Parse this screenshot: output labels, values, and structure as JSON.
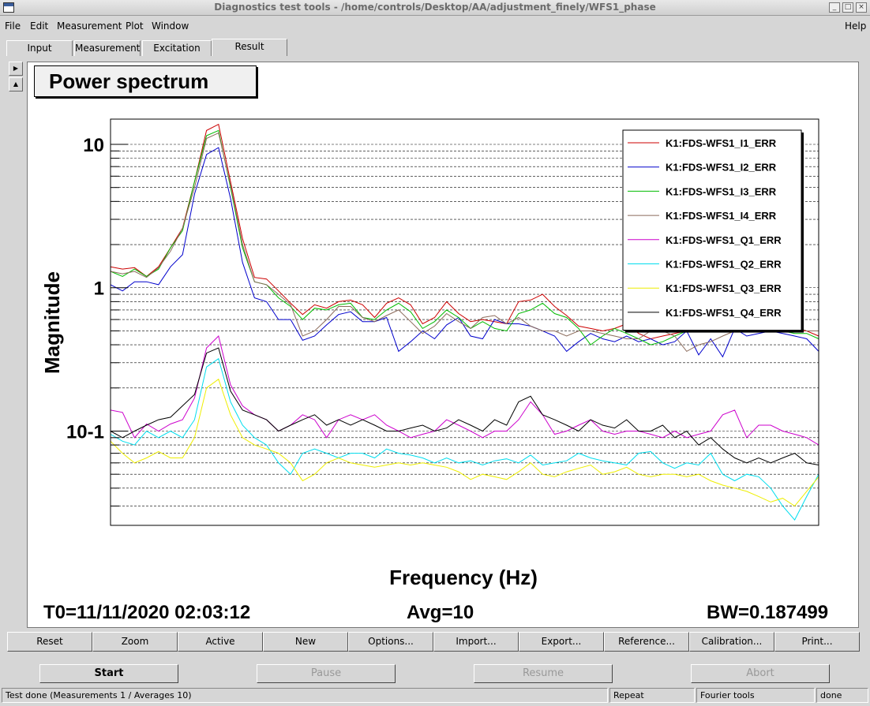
{
  "window": {
    "title": "Diagnostics test tools - /home/controls/Desktop/AA/adjustment_finely/WFS1_phase"
  },
  "menu": {
    "file": "File",
    "edit": "Edit",
    "measurement": "Measurement",
    "plot": "Plot",
    "window": "Window",
    "help": "Help"
  },
  "tabs": [
    {
      "label": "Input"
    },
    {
      "label": "Measurement"
    },
    {
      "label": "Excitation"
    },
    {
      "label": "Result"
    }
  ],
  "plot": {
    "title": "Power spectrum",
    "t0": "T0=11/11/2020 02:03:12",
    "avg": "Avg=10",
    "bw": "BW=0.187499"
  },
  "chart_data": {
    "type": "line",
    "title": "Power spectrum",
    "xlabel": "Frequency (Hz)",
    "ylabel": "Magnitude",
    "yscale": "log",
    "ylim": [
      0.022,
      15
    ],
    "ytick_labels": [
      "10",
      "1",
      "10-1"
    ],
    "yticks": [
      10,
      1,
      0.1
    ],
    "x": [
      0,
      1,
      2,
      3,
      4,
      5,
      6,
      7,
      8,
      9,
      10,
      11,
      12,
      13,
      14,
      15,
      16,
      17,
      18,
      19,
      20,
      21,
      22,
      23,
      24,
      25,
      26,
      27,
      28,
      29,
      30,
      31,
      32,
      33,
      34,
      35,
      36,
      37,
      38,
      39,
      40,
      41,
      42,
      43,
      44,
      45,
      46,
      47,
      48,
      49,
      50,
      51,
      52,
      53,
      54,
      55,
      56,
      57,
      58,
      59
    ],
    "grid": "horizontal",
    "legend_position": "top-right",
    "series": [
      {
        "name": "K1:FDS-WFS1_I1_ERR",
        "color": "#cc0000",
        "values": [
          1.4,
          1.35,
          1.38,
          1.2,
          1.4,
          1.9,
          2.6,
          5.5,
          12.5,
          13.8,
          5.5,
          2.2,
          1.18,
          1.15,
          0.95,
          0.78,
          0.65,
          0.76,
          0.72,
          0.8,
          0.82,
          0.76,
          0.62,
          0.78,
          0.85,
          0.76,
          0.56,
          0.62,
          0.8,
          0.66,
          0.58,
          0.6,
          0.58,
          0.56,
          0.8,
          0.82,
          0.9,
          0.74,
          0.64,
          0.54,
          0.52,
          0.5,
          0.52,
          0.56,
          0.48,
          0.44,
          0.46,
          0.48,
          0.5,
          0.56,
          0.62,
          0.7,
          0.66,
          0.6,
          0.58,
          0.56,
          0.54,
          0.5,
          0.5,
          0.46
        ]
      },
      {
        "name": "K1:FDS-WFS1_I2_ERR",
        "color": "#0000cc",
        "values": [
          1.05,
          0.95,
          1.1,
          1.1,
          1.05,
          1.4,
          1.7,
          4.5,
          8.5,
          9.5,
          4.2,
          1.5,
          0.85,
          0.8,
          0.6,
          0.6,
          0.43,
          0.46,
          0.55,
          0.65,
          0.68,
          0.58,
          0.58,
          0.62,
          0.36,
          0.42,
          0.5,
          0.44,
          0.55,
          0.62,
          0.46,
          0.44,
          0.6,
          0.56,
          0.56,
          0.54,
          0.5,
          0.46,
          0.36,
          0.42,
          0.48,
          0.44,
          0.42,
          0.46,
          0.42,
          0.44,
          0.4,
          0.42,
          0.5,
          0.34,
          0.44,
          0.33,
          0.52,
          0.46,
          0.48,
          0.5,
          0.48,
          0.46,
          0.44,
          0.36
        ]
      },
      {
        "name": "K1:FDS-WFS1_I3_ERR",
        "color": "#00bb00",
        "values": [
          1.3,
          1.2,
          1.35,
          1.2,
          1.35,
          1.9,
          2.5,
          5.5,
          11.5,
          12.5,
          5.0,
          1.9,
          1.1,
          1.05,
          0.85,
          0.74,
          0.6,
          0.72,
          0.7,
          0.76,
          0.78,
          0.62,
          0.6,
          0.7,
          0.78,
          0.68,
          0.52,
          0.58,
          0.7,
          0.62,
          0.52,
          0.58,
          0.52,
          0.5,
          0.66,
          0.7,
          0.78,
          0.66,
          0.62,
          0.52,
          0.4,
          0.46,
          0.52,
          0.48,
          0.44,
          0.4,
          0.42,
          0.46,
          0.5,
          0.52,
          0.56,
          0.62,
          0.6,
          0.56,
          0.52,
          0.5,
          0.5,
          0.48,
          0.48,
          0.44
        ]
      },
      {
        "name": "K1:FDS-WFS1_I4_ERR",
        "color": "#8b6b5b",
        "values": [
          1.3,
          1.25,
          1.3,
          1.18,
          1.38,
          1.8,
          2.6,
          5.0,
          11.0,
          12.0,
          5.2,
          2.0,
          1.1,
          1.05,
          0.9,
          0.76,
          0.46,
          0.5,
          0.6,
          0.74,
          0.74,
          0.62,
          0.58,
          0.64,
          0.7,
          0.58,
          0.48,
          0.54,
          0.66,
          0.58,
          0.52,
          0.62,
          0.64,
          0.56,
          0.62,
          0.54,
          0.5,
          0.5,
          0.46,
          0.5,
          0.5,
          0.48,
          0.46,
          0.44,
          0.44,
          0.5,
          0.5,
          0.46,
          0.36,
          0.4,
          0.42,
          0.46,
          0.5,
          0.52,
          0.56,
          0.6,
          0.58,
          0.54,
          0.5,
          0.5
        ]
      },
      {
        "name": "K1:FDS-WFS1_Q1_ERR",
        "color": "#cc00cc",
        "values": [
          0.14,
          0.135,
          0.09,
          0.112,
          0.1,
          0.112,
          0.12,
          0.17,
          0.38,
          0.46,
          0.21,
          0.15,
          0.13,
          0.12,
          0.1,
          0.11,
          0.13,
          0.12,
          0.09,
          0.12,
          0.13,
          0.12,
          0.13,
          0.11,
          0.1,
          0.09,
          0.095,
          0.1,
          0.12,
          0.11,
          0.1,
          0.09,
          0.1,
          0.1,
          0.12,
          0.16,
          0.13,
          0.095,
          0.1,
          0.11,
          0.12,
          0.1,
          0.095,
          0.1,
          0.1,
          0.095,
          0.09,
          0.1,
          0.09,
          0.095,
          0.1,
          0.13,
          0.14,
          0.09,
          0.11,
          0.11,
          0.1,
          0.095,
          0.09,
          0.08
        ]
      },
      {
        "name": "K1:FDS-WFS1_Q2_ERR",
        "color": "#00ddee",
        "values": [
          0.095,
          0.085,
          0.08,
          0.1,
          0.09,
          0.1,
          0.09,
          0.12,
          0.28,
          0.32,
          0.16,
          0.11,
          0.09,
          0.08,
          0.06,
          0.05,
          0.07,
          0.075,
          0.07,
          0.065,
          0.07,
          0.07,
          0.065,
          0.075,
          0.07,
          0.068,
          0.065,
          0.06,
          0.065,
          0.06,
          0.062,
          0.058,
          0.062,
          0.064,
          0.06,
          0.068,
          0.058,
          0.06,
          0.062,
          0.07,
          0.065,
          0.062,
          0.06,
          0.058,
          0.07,
          0.072,
          0.06,
          0.055,
          0.06,
          0.058,
          0.07,
          0.05,
          0.045,
          0.05,
          0.048,
          0.04,
          0.03,
          0.024,
          0.035,
          0.05
        ]
      },
      {
        "name": "K1:FDS-WFS1_Q3_ERR",
        "color": "#eeee00",
        "values": [
          0.085,
          0.07,
          0.06,
          0.065,
          0.072,
          0.065,
          0.065,
          0.09,
          0.2,
          0.23,
          0.13,
          0.09,
          0.08,
          0.075,
          0.07,
          0.06,
          0.045,
          0.05,
          0.06,
          0.065,
          0.06,
          0.058,
          0.056,
          0.058,
          0.06,
          0.058,
          0.06,
          0.058,
          0.056,
          0.052,
          0.046,
          0.05,
          0.048,
          0.046,
          0.052,
          0.06,
          0.05,
          0.048,
          0.052,
          0.055,
          0.058,
          0.05,
          0.052,
          0.056,
          0.05,
          0.048,
          0.05,
          0.05,
          0.048,
          0.05,
          0.045,
          0.042,
          0.04,
          0.038,
          0.035,
          0.032,
          0.034,
          0.03,
          0.038,
          0.048
        ]
      },
      {
        "name": "K1:FDS-WFS1_Q4_ERR",
        "color": "#000000",
        "values": [
          0.1,
          0.09,
          0.1,
          0.11,
          0.12,
          0.125,
          0.15,
          0.18,
          0.35,
          0.38,
          0.19,
          0.14,
          0.13,
          0.12,
          0.1,
          0.11,
          0.12,
          0.13,
          0.11,
          0.12,
          0.11,
          0.12,
          0.11,
          0.1,
          0.1,
          0.105,
          0.11,
          0.1,
          0.105,
          0.12,
          0.11,
          0.1,
          0.12,
          0.11,
          0.16,
          0.175,
          0.13,
          0.12,
          0.11,
          0.1,
          0.12,
          0.11,
          0.105,
          0.12,
          0.1,
          0.1,
          0.11,
          0.09,
          0.1,
          0.08,
          0.09,
          0.075,
          0.065,
          0.06,
          0.065,
          0.06,
          0.065,
          0.07,
          0.06,
          0.058
        ]
      }
    ]
  },
  "toolbar": [
    {
      "label": "Reset"
    },
    {
      "label": "Zoom"
    },
    {
      "label": "Active"
    },
    {
      "label": "New"
    },
    {
      "label": "Options..."
    },
    {
      "label": "Import..."
    },
    {
      "label": "Export..."
    },
    {
      "label": "Reference..."
    },
    {
      "label": "Calibration..."
    },
    {
      "label": "Print..."
    }
  ],
  "controls": {
    "start": "Start",
    "pause": "Pause",
    "resume": "Resume",
    "abort": "Abort"
  },
  "status": {
    "message": "Test done (Measurements 1 / Averages 10)",
    "repeat": "Repeat",
    "mode": "Fourier tools",
    "state": "done"
  }
}
